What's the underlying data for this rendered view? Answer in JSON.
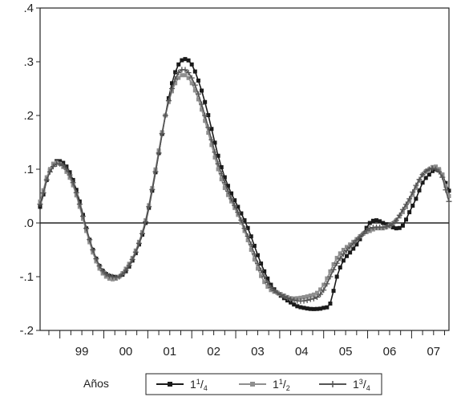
{
  "chart_data": {
    "type": "line",
    "title": "",
    "xlabel": "Años",
    "ylabel": "",
    "ylim": [
      -0.2,
      0.4
    ],
    "xlim": [
      1998.55,
      2007.85
    ],
    "y_ticks": [
      {
        "value": 0.4,
        "label": ".4"
      },
      {
        "value": 0.3,
        "label": ".3"
      },
      {
        "value": 0.2,
        "label": ".2"
      },
      {
        "value": 0.1,
        "label": ".1"
      },
      {
        "value": 0.0,
        "label": ".0"
      },
      {
        "value": -0.1,
        "label": "-.1"
      },
      {
        "value": -0.2,
        "label": "-.2"
      }
    ],
    "x_tick_labels": [
      {
        "year": 1999,
        "label": "99"
      },
      {
        "year": 2000,
        "label": "00"
      },
      {
        "year": 2001,
        "label": "01"
      },
      {
        "year": 2002,
        "label": "02"
      },
      {
        "year": 2003,
        "label": "03"
      },
      {
        "year": 2004,
        "label": "04"
      },
      {
        "year": 2005,
        "label": "05"
      },
      {
        "year": 2006,
        "label": "06"
      },
      {
        "year": 2007,
        "label": "07"
      }
    ],
    "zero_line": true,
    "grid": false,
    "legend_position": "bottom",
    "series": [
      {
        "name": "1¼",
        "name_main": "1",
        "name_num": "1",
        "name_den": "4",
        "color": "#1a1a1a",
        "marker": "square",
        "x": [
          1998.55,
          1998.7,
          1998.85,
          1999.0,
          1999.15,
          1999.3,
          1999.45,
          1999.6,
          1999.75,
          1999.9,
          2000.05,
          2000.2,
          2000.35,
          2000.5,
          2000.65,
          2000.8,
          2000.95,
          2001.1,
          2001.25,
          2001.4,
          2001.55,
          2001.7,
          2001.85,
          2002.0,
          2002.15,
          2002.3,
          2002.45,
          2002.6,
          2002.75,
          2002.9,
          2003.05,
          2003.2,
          2003.35,
          2003.5,
          2003.65,
          2003.8,
          2003.95,
          2004.1,
          2004.25,
          2004.4,
          2004.55,
          2004.7,
          2004.85,
          2005.0,
          2005.15,
          2005.3,
          2005.45,
          2005.6,
          2005.75,
          2005.9,
          2006.05,
          2006.2,
          2006.35,
          2006.5,
          2006.65,
          2006.8,
          2006.95,
          2007.1,
          2007.25,
          2007.4,
          2007.55,
          2007.7,
          2007.85
        ],
        "values": [
          0.03,
          0.08,
          0.11,
          0.115,
          0.105,
          0.08,
          0.04,
          -0.01,
          -0.05,
          -0.08,
          -0.095,
          -0.1,
          -0.1,
          -0.09,
          -0.07,
          -0.04,
          0.0,
          0.06,
          0.13,
          0.2,
          0.26,
          0.295,
          0.305,
          0.295,
          0.265,
          0.225,
          0.175,
          0.125,
          0.085,
          0.055,
          0.03,
          0.005,
          -0.025,
          -0.06,
          -0.09,
          -0.115,
          -0.13,
          -0.14,
          -0.148,
          -0.155,
          -0.158,
          -0.16,
          -0.16,
          -0.158,
          -0.15,
          -0.1,
          -0.07,
          -0.055,
          -0.04,
          -0.02,
          0.0,
          0.005,
          0.0,
          -0.005,
          -0.01,
          -0.005,
          0.02,
          0.045,
          0.075,
          0.09,
          0.1,
          0.09,
          0.06
        ]
      },
      {
        "name": "1½",
        "name_main": "1",
        "name_num": "1",
        "name_den": "2",
        "color": "#8f8f8f",
        "marker": "square",
        "x": [
          1998.55,
          1998.7,
          1998.85,
          1999.0,
          1999.15,
          1999.3,
          1999.45,
          1999.6,
          1999.75,
          1999.9,
          2000.05,
          2000.2,
          2000.35,
          2000.5,
          2000.65,
          2000.8,
          2000.95,
          2001.1,
          2001.25,
          2001.4,
          2001.55,
          2001.7,
          2001.85,
          2002.0,
          2002.15,
          2002.3,
          2002.45,
          2002.6,
          2002.75,
          2002.9,
          2003.05,
          2003.2,
          2003.35,
          2003.5,
          2003.65,
          2003.8,
          2003.95,
          2004.1,
          2004.25,
          2004.4,
          2004.55,
          2004.7,
          2004.85,
          2005.0,
          2005.15,
          2005.3,
          2005.45,
          2005.6,
          2005.75,
          2005.9,
          2006.05,
          2006.2,
          2006.35,
          2006.5,
          2006.65,
          2006.8,
          2006.95,
          2007.1,
          2007.25,
          2007.4,
          2007.55,
          2007.7,
          2007.85
        ],
        "values": [
          0.04,
          0.085,
          0.11,
          0.11,
          0.095,
          0.07,
          0.03,
          -0.015,
          -0.055,
          -0.085,
          -0.1,
          -0.105,
          -0.1,
          -0.085,
          -0.065,
          -0.035,
          0.005,
          0.065,
          0.135,
          0.2,
          0.245,
          0.27,
          0.275,
          0.26,
          0.23,
          0.19,
          0.145,
          0.1,
          0.065,
          0.04,
          0.015,
          -0.015,
          -0.05,
          -0.085,
          -0.11,
          -0.125,
          -0.13,
          -0.135,
          -0.14,
          -0.14,
          -0.138,
          -0.135,
          -0.13,
          -0.115,
          -0.09,
          -0.065,
          -0.05,
          -0.04,
          -0.03,
          -0.02,
          -0.015,
          -0.01,
          -0.01,
          -0.005,
          0.005,
          0.02,
          0.04,
          0.065,
          0.09,
          0.1,
          0.105,
          0.09,
          0.05
        ]
      },
      {
        "name": "1¾",
        "name_main": "1",
        "name_num": "3",
        "name_den": "4",
        "color": "#555555",
        "marker": "plus",
        "x": [
          1998.55,
          1998.7,
          1998.85,
          1999.0,
          1999.15,
          1999.3,
          1999.45,
          1999.6,
          1999.75,
          1999.9,
          2000.05,
          2000.2,
          2000.35,
          2000.5,
          2000.65,
          2000.8,
          2000.95,
          2001.1,
          2001.25,
          2001.4,
          2001.55,
          2001.7,
          2001.85,
          2002.0,
          2002.15,
          2002.3,
          2002.45,
          2002.6,
          2002.75,
          2002.9,
          2003.05,
          2003.2,
          2003.35,
          2003.5,
          2003.65,
          2003.8,
          2003.95,
          2004.1,
          2004.25,
          2004.4,
          2004.55,
          2004.7,
          2004.85,
          2005.0,
          2005.15,
          2005.3,
          2005.45,
          2005.6,
          2005.75,
          2005.9,
          2006.05,
          2006.2,
          2006.35,
          2006.5,
          2006.65,
          2006.8,
          2006.95,
          2007.1,
          2007.25,
          2007.4,
          2007.55,
          2007.7,
          2007.85
        ],
        "values": [
          0.035,
          0.08,
          0.105,
          0.11,
          0.1,
          0.075,
          0.035,
          -0.01,
          -0.05,
          -0.08,
          -0.095,
          -0.1,
          -0.1,
          -0.088,
          -0.068,
          -0.038,
          0.002,
          0.062,
          0.13,
          0.2,
          0.25,
          0.28,
          0.285,
          0.27,
          0.24,
          0.2,
          0.155,
          0.11,
          0.075,
          0.045,
          0.02,
          -0.01,
          -0.04,
          -0.075,
          -0.1,
          -0.12,
          -0.13,
          -0.137,
          -0.142,
          -0.145,
          -0.145,
          -0.142,
          -0.138,
          -0.125,
          -0.1,
          -0.075,
          -0.058,
          -0.045,
          -0.032,
          -0.02,
          -0.01,
          -0.008,
          -0.008,
          -0.005,
          0.005,
          0.025,
          0.045,
          0.07,
          0.09,
          0.1,
          0.1,
          0.085,
          0.04
        ]
      }
    ]
  }
}
